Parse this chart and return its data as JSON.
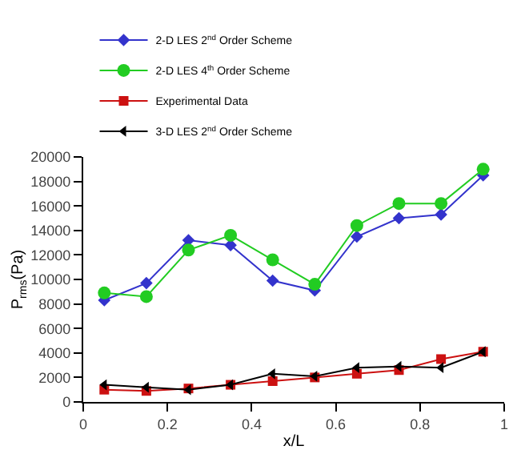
{
  "chart_data": {
    "type": "line",
    "xlabel": "x/L",
    "ylabel": "P$_{rms}$(Pa)",
    "x": [
      0.05,
      0.15,
      0.25,
      0.35,
      0.45,
      0.55,
      0.65,
      0.75,
      0.85,
      0.95
    ],
    "xlim": [
      0,
      1
    ],
    "xticks": [
      0,
      0.2,
      0.4,
      0.6,
      0.8,
      1
    ],
    "ylim": [
      0,
      20000
    ],
    "yticks": [
      0,
      2000,
      4000,
      6000,
      8000,
      10000,
      12000,
      14000,
      16000,
      18000,
      20000
    ],
    "legend": "top left",
    "series": [
      {
        "name": "2-D LES 2$^{nd}$ Order Scheme",
        "color": "#3333cc",
        "marker": "diamond",
        "values": [
          8300,
          9700,
          13200,
          12800,
          9900,
          9100,
          13500,
          15000,
          15300,
          18500
        ]
      },
      {
        "name": "2-D LES 4$^{th}$ Order Scheme",
        "color": "#22cc22",
        "marker": "circle",
        "values": [
          8900,
          8600,
          12400,
          13600,
          11600,
          9600,
          14400,
          16200,
          16200,
          19000
        ]
      },
      {
        "name": "Experimental Data",
        "color": "#cc1111",
        "marker": "square",
        "values": [
          1000,
          900,
          1100,
          1400,
          1700,
          2000,
          2300,
          2600,
          3500,
          4100
        ]
      },
      {
        "name": "3-D LES 2$^{nd}$ Order Scheme",
        "color": "#000000",
        "marker": "triangle",
        "values": [
          1400,
          1200,
          1000,
          1400,
          2300,
          2100,
          2800,
          2900,
          2800,
          4100
        ]
      }
    ]
  }
}
